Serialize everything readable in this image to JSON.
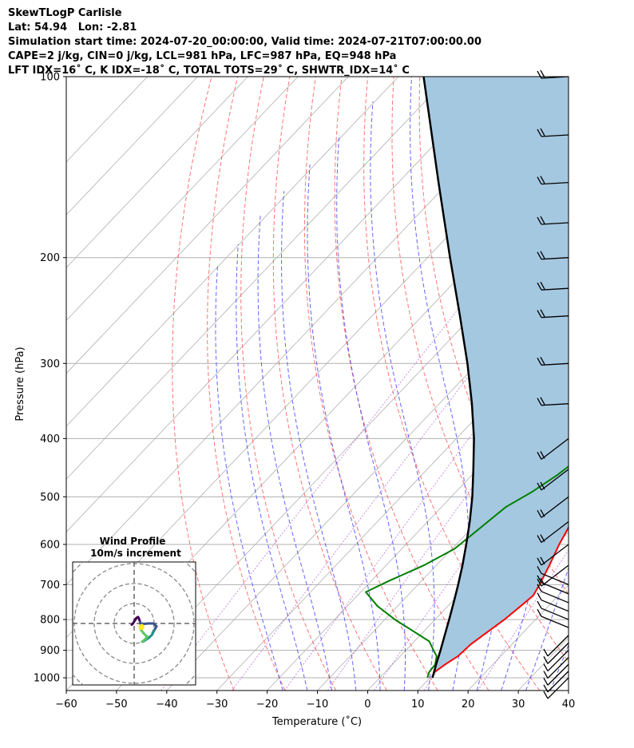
{
  "header": {
    "line1": "SkewTLogP Carlisle",
    "line2": "Lat: 54.94   Lon: -2.81",
    "line3": "Simulation start time: 2024-07-20_00:00:00, Valid time: 2024-07-21T07:00:00.00",
    "line4": "CAPE=2 j/kg, CIN=0 j/kg, LCL=981 hPa, LFC=987 hPa, EQ=948 hPa",
    "line5": "LFT IDX=16˚ C, K IDX=-18˚ C, TOTAL TOTS=29˚ C, SHWTR_IDX=14˚ C"
  },
  "chart_data": {
    "type": "line",
    "chart_kind": "skew-t log-p",
    "xlabel": "Temperature (˚C)",
    "ylabel": "Pressure (hPa)",
    "xlim": [
      -60,
      40
    ],
    "ylim": [
      1050,
      100
    ],
    "y_scale": "log",
    "grid": true,
    "x_ticks": [
      "−60",
      "−50",
      "−40",
      "−30",
      "−20",
      "−10",
      "0",
      "10",
      "20",
      "30",
      "40"
    ],
    "y_ticks": [
      {
        "p": 1000,
        "label": "1000"
      },
      {
        "p": 900,
        "label": "900"
      },
      {
        "p": 800,
        "label": "800"
      },
      {
        "p": 700,
        "label": "700"
      },
      {
        "p": 600,
        "label": "600"
      },
      {
        "p": 500,
        "label": "500"
      },
      {
        "p": 400,
        "label": "400"
      },
      {
        "p": 300,
        "label": "300"
      },
      {
        "p": 200,
        "label": "200"
      },
      {
        "p": 100,
        "label": "100"
      }
    ],
    "series": [
      {
        "role": "temperature",
        "color": "#ff0000",
        "points": [
          [
            1000,
            10.5
          ],
          [
            980,
            9.8
          ],
          [
            950,
            10.5
          ],
          [
            920,
            11.5
          ],
          [
            880,
            11.8
          ],
          [
            850,
            12.5
          ],
          [
            800,
            13.8
          ],
          [
            760,
            14.5
          ],
          [
            730,
            15.0
          ],
          [
            700,
            14.2
          ],
          [
            650,
            12.5
          ],
          [
            600,
            10.5
          ],
          [
            550,
            8.7
          ],
          [
            500,
            8.3
          ],
          [
            460,
            7.6
          ],
          [
            430,
            6.0
          ],
          [
            400,
            4.8
          ],
          [
            360,
            3.3
          ],
          [
            330,
            1.7
          ],
          [
            300,
            -0.3
          ],
          [
            280,
            -1.5
          ],
          [
            266,
            -1.8
          ],
          [
            240,
            -1.5
          ],
          [
            215,
            -0.9
          ],
          [
            195,
            -0.5
          ],
          [
            175,
            -0.9
          ],
          [
            160,
            -1.3
          ],
          [
            145,
            -0.3
          ],
          [
            130,
            0.5
          ],
          [
            120,
            2.5
          ],
          [
            110,
            5.5
          ],
          [
            100,
            8.2
          ]
        ]
      },
      {
        "role": "dewpoint",
        "color": "#008000",
        "points": [
          [
            1000,
            9.5
          ],
          [
            980,
            8.8
          ],
          [
            950,
            8.5
          ],
          [
            920,
            7.2
          ],
          [
            900,
            5.5
          ],
          [
            870,
            3.0
          ],
          [
            800,
            -8.0
          ],
          [
            760,
            -14.0
          ],
          [
            720,
            -19.0
          ],
          [
            690,
            -16.5
          ],
          [
            650,
            -12.5
          ],
          [
            610,
            -9.5
          ],
          [
            570,
            -8.5
          ],
          [
            520,
            -7.2
          ],
          [
            490,
            -4.8
          ],
          [
            460,
            -3.0
          ],
          [
            430,
            -1.8
          ],
          [
            390,
            -0.5
          ],
          [
            370,
            -3.0
          ],
          [
            340,
            -7.0
          ],
          [
            320,
            -7.0
          ],
          [
            290,
            -8.0
          ],
          [
            270,
            -10.0
          ],
          [
            255,
            -16.0
          ],
          [
            240,
            -17.5
          ],
          [
            225,
            -17.0
          ],
          [
            205,
            -16.2
          ],
          [
            190,
            -18.5
          ],
          [
            175,
            -22.0
          ],
          [
            160,
            -18.3
          ],
          [
            140,
            -15.5
          ],
          [
            120,
            -15.6
          ],
          [
            100,
            -17.6
          ]
        ]
      },
      {
        "role": "parcel",
        "color": "#000000",
        "points": [
          [
            1000,
            10.5
          ],
          [
            950,
            8.7
          ],
          [
            900,
            6.9
          ],
          [
            850,
            4.9
          ],
          [
            800,
            2.8
          ],
          [
            750,
            0.5
          ],
          [
            700,
            -2.0
          ],
          [
            650,
            -4.8
          ],
          [
            600,
            -8.0
          ],
          [
            550,
            -11.6
          ],
          [
            500,
            -15.8
          ],
          [
            450,
            -20.8
          ],
          [
            400,
            -26.5
          ],
          [
            350,
            -33.5
          ],
          [
            300,
            -42.0
          ],
          [
            250,
            -52.5
          ],
          [
            200,
            -65.5
          ],
          [
            150,
            -82.0
          ],
          [
            100,
            -105.0
          ]
        ]
      }
    ],
    "wind_barbs_hpa": [
      1000,
      975,
      950,
      925,
      900,
      875,
      850,
      825,
      800,
      775,
      750,
      725,
      700,
      650,
      600,
      550,
      500,
      450,
      400,
      350,
      300,
      250,
      225,
      200,
      175,
      150,
      125,
      100
    ]
  },
  "hodograph": {
    "title_line1": "Wind Profile",
    "title_line2": "10m/s increment",
    "colors": [
      "#440154",
      "#3b528b",
      "#21918c",
      "#5ec962",
      "#fde725"
    ],
    "points": [
      [
        -0.6,
        0.3
      ],
      [
        -0.3,
        0.0
      ],
      [
        0.2,
        -0.8
      ],
      [
        0.6,
        -1.4
      ],
      [
        1.0,
        -1.6
      ],
      [
        1.2,
        -1.2
      ],
      [
        1.5,
        -0.4
      ],
      [
        1.6,
        0.0
      ],
      [
        2.5,
        0.1
      ],
      [
        3.5,
        0.0
      ],
      [
        4.8,
        0.0
      ],
      [
        5.6,
        0.7
      ],
      [
        5.0,
        1.8
      ],
      [
        4.5,
        2.8
      ],
      [
        3.7,
        3.6
      ],
      [
        2.9,
        4.1
      ],
      [
        2.3,
        4.5
      ],
      [
        2.0,
        4.6
      ],
      [
        2.8,
        3.9
      ],
      [
        3.3,
        3.3
      ],
      [
        2.9,
        3.0
      ],
      [
        2.5,
        2.6
      ],
      [
        2.0,
        2.0
      ],
      [
        1.5,
        1.3
      ],
      [
        1.4,
        0.6
      ],
      [
        2.0,
        0.4
      ],
      [
        2.3,
        0.9
      ],
      [
        2.0,
        1.3
      ],
      [
        1.5,
        1.1
      ]
    ]
  }
}
